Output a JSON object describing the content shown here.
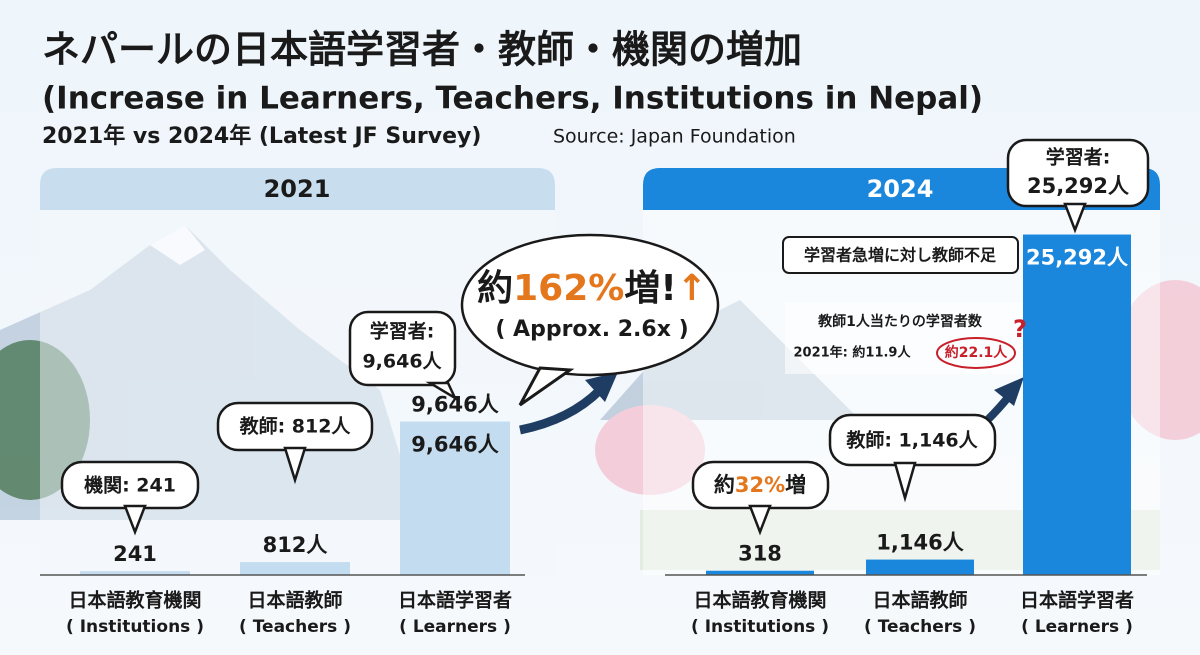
{
  "header": {
    "title": "ネパールの日本語学習者・教師・機関の増加",
    "subtitle": "(Increase in Learners, Teachers, Institutions in Nepal)",
    "comparison": "2021年 vs 2024年 (Latest JF Survey)",
    "source": "Source: Japan Foundation"
  },
  "chart_data": [
    {
      "type": "bar",
      "title": "2021",
      "categories": [
        "日本語教育機関",
        "日本語教師",
        "日本語学習者"
      ],
      "categories_en": [
        "( Institutions )",
        "( Teachers )",
        "( Learners )"
      ],
      "values": [
        241,
        812,
        9646
      ],
      "value_labels": [
        "241",
        "812人",
        "9,646人"
      ],
      "color": "#c4dcf0",
      "ylim": [
        0,
        22000
      ]
    },
    {
      "type": "bar",
      "title": "2024",
      "categories": [
        "日本語教育機関",
        "日本語教師",
        "日本語学習者"
      ],
      "categories_en": [
        "( Institutions )",
        "( Teachers )",
        "( Learners )"
      ],
      "values": [
        318,
        1146,
        25292
      ],
      "value_labels": [
        "318",
        "1,146人",
        "25,292人"
      ],
      "color": "#1a86dc",
      "ylim": [
        0,
        26000
      ]
    }
  ],
  "callouts": {
    "institutions_2021": "機関: 241",
    "teachers_2021": "教師: 812人",
    "learners_2021": [
      "学習者:",
      "9,646人"
    ],
    "growth": [
      "約",
      "162%",
      "増!",
      "↑"
    ],
    "growth_note": "( Approx. 2.6x )",
    "institutions_growth": [
      "約",
      "32%",
      "増"
    ],
    "teachers_2024": "教師: 1,146人",
    "learners_2024": [
      "学習者:",
      "25,292人"
    ],
    "shortage": "学習者急増に対し教師不足",
    "ratio_title": "教師1人当たりの学習者数",
    "ratio_2021": "2021年: 約11.9人",
    "ratio_2024": "約22.1人",
    "question": "?"
  }
}
